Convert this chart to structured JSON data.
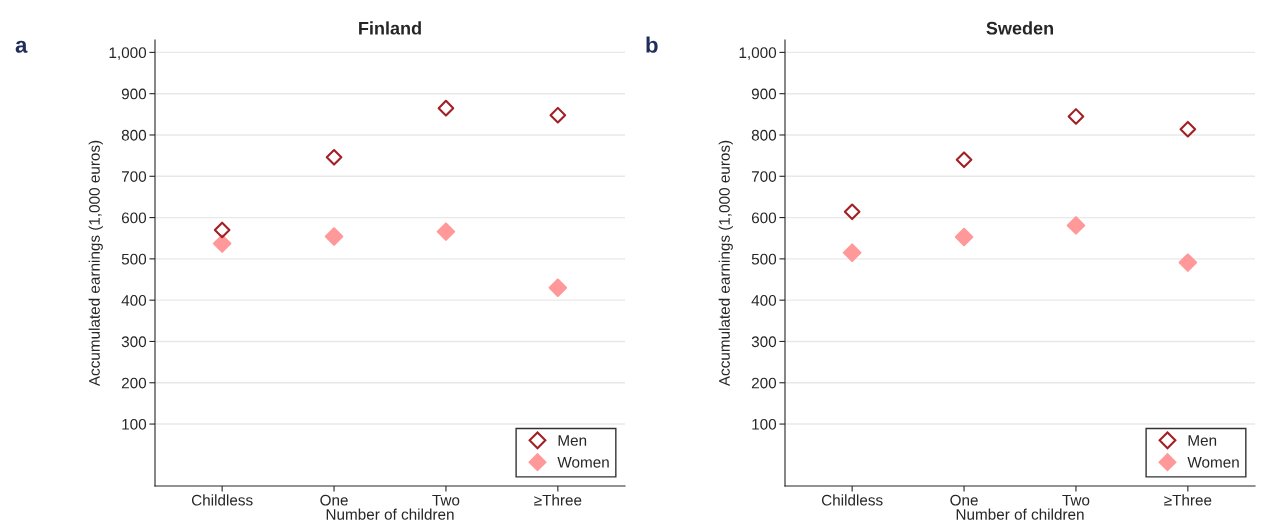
{
  "chart_data": [
    {
      "type": "scatter",
      "title": "Finland",
      "xlabel": "Number of children",
      "ylabel": "Accumulated earnings (1,000 euros)",
      "annotations": [
        "a"
      ],
      "categories": [
        "Childless",
        "One",
        "Two",
        "≥Three"
      ],
      "series": [
        {
          "name": "Men",
          "color": "#a31f24",
          "marker": "diamond",
          "values": [
            570,
            746,
            865,
            848
          ]
        },
        {
          "name": "Women",
          "color": "#ff9999",
          "marker": "diamond",
          "values": [
            537,
            554,
            566,
            430
          ]
        }
      ],
      "ylim": [
        -50,
        1030
      ],
      "yticks": [
        100,
        200,
        300,
        400,
        500,
        600,
        700,
        800,
        900,
        {
          "value": 1000,
          "label": "1,000"
        }
      ],
      "grid": "y",
      "legend": "bottom right"
    },
    {
      "type": "scatter",
      "title": "Sweden",
      "xlabel": "Number of children",
      "ylabel": "Accumulated earnings (1,000 euros)",
      "annotations": [
        "b"
      ],
      "categories": [
        "Childless",
        "One",
        "Two",
        "≥Three"
      ],
      "series": [
        {
          "name": "Men",
          "color": "#a31f24",
          "marker": "diamond",
          "values": [
            614,
            740,
            845,
            814
          ]
        },
        {
          "name": "Women",
          "color": "#ff9999",
          "marker": "diamond",
          "values": [
            515,
            553,
            581,
            491
          ]
        }
      ],
      "ylim": [
        -50,
        1030
      ],
      "yticks": [
        100,
        200,
        300,
        400,
        500,
        600,
        700,
        800,
        900,
        {
          "value": 1000,
          "label": "1,000"
        }
      ],
      "grid": "y",
      "legend": "bottom right"
    }
  ]
}
